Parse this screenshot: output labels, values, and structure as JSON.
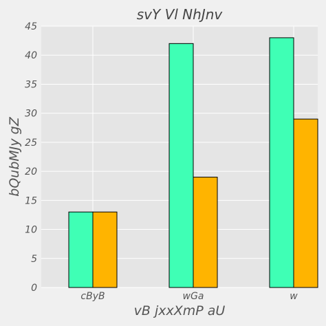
{
  "chart_data": {
    "type": "bar",
    "title": "svY  Vl NhJnv",
    "xlabel": "vB  jxxXmP aU",
    "ylabel": "bQubMJy gZ",
    "categories": [
      "cByB",
      "wGa",
      "w"
    ],
    "series": [
      {
        "values": [
          13,
          42,
          43
        ],
        "color": "#3fffb5"
      },
      {
        "values": [
          13,
          19,
          29
        ],
        "color": "#ffb400"
      }
    ],
    "ylim": [
      0,
      45
    ],
    "yticks": [
      0,
      5,
      10,
      15,
      20,
      25,
      30,
      35,
      40,
      45
    ],
    "grid": true,
    "legend": "none",
    "background": "#e5e5e5",
    "bar_edge_color": "#000000"
  }
}
